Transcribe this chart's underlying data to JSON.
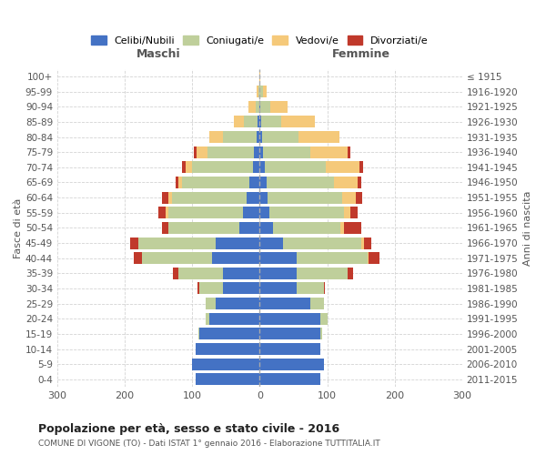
{
  "age_groups": [
    "0-4",
    "5-9",
    "10-14",
    "15-19",
    "20-24",
    "25-29",
    "30-34",
    "35-39",
    "40-44",
    "45-49",
    "50-54",
    "55-59",
    "60-64",
    "65-69",
    "70-74",
    "75-79",
    "80-84",
    "85-89",
    "90-94",
    "95-99",
    "100+"
  ],
  "birth_years": [
    "2011-2015",
    "2006-2010",
    "2001-2005",
    "1996-2000",
    "1991-1995",
    "1986-1990",
    "1981-1985",
    "1976-1980",
    "1971-1975",
    "1966-1970",
    "1961-1965",
    "1956-1960",
    "1951-1955",
    "1946-1950",
    "1941-1945",
    "1936-1940",
    "1931-1935",
    "1926-1930",
    "1921-1925",
    "1916-1920",
    "≤ 1915"
  ],
  "colors": {
    "celibe": "#4472C4",
    "coniugato": "#BFCF9B",
    "vedovo": "#F5C97A",
    "divorziato": "#C0392B"
  },
  "maschi": {
    "celibe": [
      95,
      100,
      95,
      90,
      75,
      65,
      55,
      55,
      70,
      65,
      30,
      25,
      20,
      15,
      10,
      8,
      5,
      3,
      1,
      0,
      0
    ],
    "coniugato": [
      0,
      0,
      0,
      1,
      5,
      15,
      35,
      65,
      105,
      115,
      105,
      110,
      110,
      100,
      90,
      70,
      50,
      20,
      5,
      2,
      0
    ],
    "vedovo": [
      0,
      0,
      0,
      0,
      0,
      0,
      0,
      0,
      0,
      0,
      0,
      5,
      5,
      5,
      10,
      15,
      20,
      15,
      10,
      2,
      0
    ],
    "divorziato": [
      0,
      0,
      0,
      0,
      0,
      0,
      2,
      8,
      12,
      12,
      10,
      10,
      10,
      5,
      5,
      5,
      0,
      0,
      0,
      0,
      0
    ]
  },
  "femmine": {
    "nubile": [
      90,
      95,
      90,
      90,
      90,
      75,
      55,
      55,
      55,
      35,
      20,
      15,
      12,
      10,
      8,
      5,
      3,
      2,
      1,
      0,
      0
    ],
    "coniugata": [
      0,
      0,
      0,
      2,
      10,
      20,
      40,
      75,
      105,
      115,
      100,
      110,
      110,
      100,
      90,
      70,
      55,
      30,
      15,
      5,
      0
    ],
    "vedova": [
      0,
      0,
      0,
      0,
      0,
      0,
      0,
      0,
      2,
      5,
      5,
      10,
      20,
      35,
      50,
      55,
      60,
      50,
      25,
      5,
      1
    ],
    "divorziata": [
      0,
      0,
      0,
      0,
      0,
      0,
      2,
      8,
      15,
      10,
      25,
      10,
      10,
      5,
      5,
      5,
      0,
      0,
      0,
      0,
      0
    ]
  },
  "title": "Popolazione per età, sesso e stato civile - 2016",
  "subtitle": "COMUNE DI VIGONE (TO) - Dati ISTAT 1° gennaio 2016 - Elaborazione TUTTITALIA.IT",
  "xlabel_left": "Maschi",
  "xlabel_right": "Femmine",
  "ylabel_left": "Fasce di età",
  "ylabel_right": "Anni di nascita",
  "xlim": 300,
  "legend_labels": [
    "Celibi/Nubili",
    "Coniugati/e",
    "Vedovi/e",
    "Divorziati/e"
  ]
}
